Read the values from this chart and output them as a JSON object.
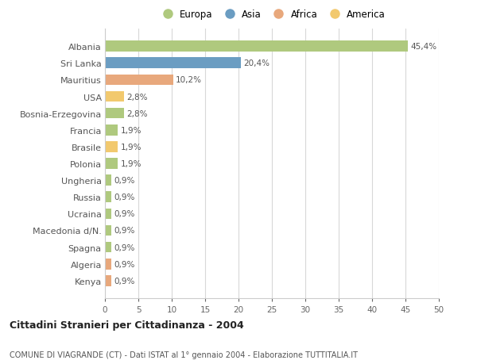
{
  "countries": [
    "Albania",
    "Sri Lanka",
    "Mauritius",
    "USA",
    "Bosnia-Erzegovina",
    "Francia",
    "Brasile",
    "Polonia",
    "Ungheria",
    "Russia",
    "Ucraina",
    "Macedonia d/N.",
    "Spagna",
    "Algeria",
    "Kenya"
  ],
  "values": [
    45.4,
    20.4,
    10.2,
    2.8,
    2.8,
    1.9,
    1.9,
    1.9,
    0.9,
    0.9,
    0.9,
    0.9,
    0.9,
    0.9,
    0.9
  ],
  "labels": [
    "45,4%",
    "20,4%",
    "10,2%",
    "2,8%",
    "2,8%",
    "1,9%",
    "1,9%",
    "1,9%",
    "0,9%",
    "0,9%",
    "0,9%",
    "0,9%",
    "0,9%",
    "0,9%",
    "0,9%"
  ],
  "colors": [
    "#afc97e",
    "#6b9dc2",
    "#e8a87c",
    "#f2c96e",
    "#afc97e",
    "#afc97e",
    "#f2c96e",
    "#afc97e",
    "#afc97e",
    "#afc97e",
    "#afc97e",
    "#afc97e",
    "#afc97e",
    "#e8a87c",
    "#e8a87c"
  ],
  "categories": [
    "Europa",
    "Asia",
    "Africa",
    "America"
  ],
  "legend_colors": [
    "#afc97e",
    "#6b9dc2",
    "#e8a87c",
    "#f2c96e"
  ],
  "xlim": [
    0,
    50
  ],
  "xticks": [
    0,
    5,
    10,
    15,
    20,
    25,
    30,
    35,
    40,
    45,
    50
  ],
  "title": "Cittadini Stranieri per Cittadinanza - 2004",
  "subtitle": "COMUNE DI VIAGRANDE (CT) - Dati ISTAT al 1° gennaio 2004 - Elaborazione TUTTITALIA.IT",
  "bg_color": "#ffffff",
  "grid_color": "#d8d8d8",
  "bar_height": 0.65
}
